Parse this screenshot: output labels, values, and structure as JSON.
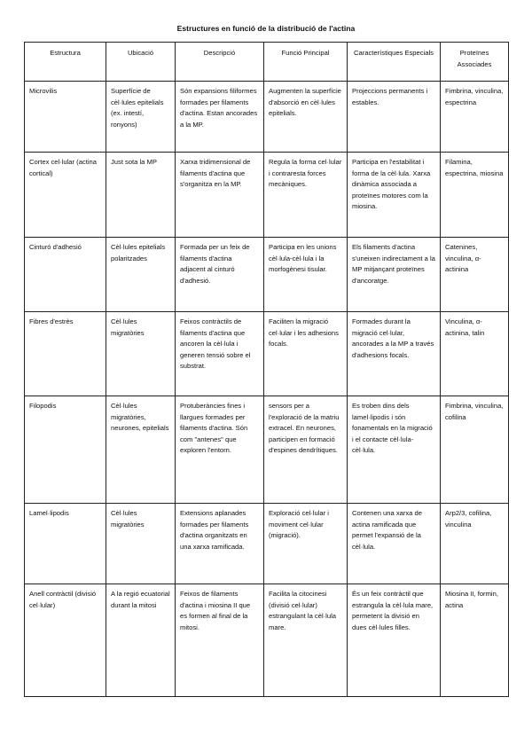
{
  "title": "Estructures en funció de la distribució de l'actina",
  "columns": [
    "Estructura",
    "Ubicació",
    "Descripció",
    "Funció Principal",
    "Característiques Especials",
    "Proteïnes Associades"
  ],
  "rows": [
    [
      "Microvilis",
      "Superfície de cèl·lules epitelials (ex. intestí, ronyons)",
      "Són expansions filiformes formades per filaments d'actina. Estan ancorades a la MP.",
      "Augmenten la superfície d'absorció en cèl·lules epitelials.",
      "Projeccions permanents i estables.",
      "Fimbrina, vinculina, espectrina"
    ],
    [
      "Cortex cel·lular (actina cortical)",
      "Just sota la MP",
      "Xarxa tridimensional de filaments d'actina que s'organitza en la MP.",
      "Regula la forma cel·lular i contraresta forces mecàniques.",
      "Participa en l'estabilitat i forma de la cèl·lula. Xarxa dinàmica associada a proteïnes motores com la miosina.",
      "Filamina, espectrina, miosina"
    ],
    [
      "Cinturó d'adhesió",
      "Cèl·lules epitelials polaritzades",
      "Formada per un feix de filaments d'actina adjacent al cinturó d'adhesió.",
      "Participa en les unions cèl·lula-cèl·lula i la morfogènesi tisular.",
      "Els filaments d'actina s'uneixen indirectament a la MP mitjançant proteïnes d'ancoratge.",
      "Catenines, vinculina, α-actinina"
    ],
    [
      "Fibres d'estrès",
      "Cèl·lules migratòries",
      "Feixos contràctils de filaments d'actina que ancoren la cèl·lula i generen tensió sobre el substrat.",
      "Faciliten la migració cel·lular i les adhesions focals.",
      "Formades durant la migració cel·lular, ancorades a la MP a través d'adhesions focals.",
      "Vinculina, α-actinina, talin"
    ],
    [
      "Filopodis",
      "Cèl·lules migratòries, neurones, epitelials",
      "Protuberàncies fines i llargues formades per filaments d'actina. Són com \"antenes\" que exploren l'entorn.",
      "sensors per a l'exploració de la matriu extracel. En neurones, participen en formació d'espines dendrítiques.",
      "Es troben dins dels lamel·lipodis i són fonamentals en la migració i el contacte cèl·lula-cèl·lula.",
      "Fimbrina, vinculina, cofilina"
    ],
    [
      "Lamel·lipodis",
      "Cèl·lules migratòries",
      "Extensions aplanades formades per filaments d'actina organitzats en una xarxa ramificada.",
      "Exploració cel·lular i moviment cel·lular (migració).",
      "Contenen una xarxa de actina ramificada que permet l'expansió de la cèl·lula.",
      "Arp2/3, cofilina, vinculina"
    ],
    [
      "Anell contràctil (divisió cel·lular)",
      "A la regió ecuatorial durant la mitosi",
      "Feixos de filaments d'actina i miosina II que es formen al final de la mitosi.",
      "Facilita la citocinesi (divisió cel·lular) estrangulant la cèl·lula mare.",
      "És un feix contràctil que estrangula la cèl·lula mare, permetent la divisió en dues cèl·lules filles.",
      "Miosina II, formin, actina"
    ]
  ]
}
